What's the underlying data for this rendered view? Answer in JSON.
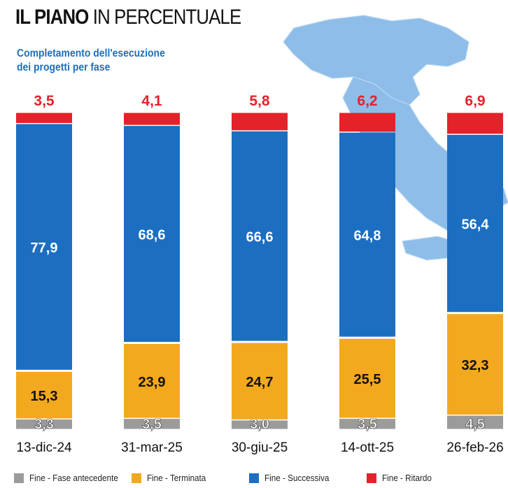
{
  "header": {
    "title_bold": "IL PIANO",
    "title_light": "IN PERCENTUALE",
    "subtitle_line1": "Completamento dell'esecuzione",
    "subtitle_line2": "dei progetti per fase"
  },
  "colors": {
    "antecedente": "#9b9b9b",
    "terminata": "#f2a91e",
    "successiva": "#1c6ec1",
    "ritardo": "#e4222a",
    "total_label": "#e4222a",
    "map": "#7fb4e3"
  },
  "chart_data": {
    "type": "bar",
    "stacked": true,
    "categories": [
      "13-dic-24",
      "31-mar-25",
      "30-giu-25",
      "14-ott-25",
      "26-feb-26"
    ],
    "series": [
      {
        "name": "Fine - Fase antecedente",
        "key": "antecedente",
        "values": [
          3.3,
          3.5,
          3.0,
          3.5,
          4.5
        ],
        "labels": [
          "3,3",
          "3,5",
          "3,0",
          "3,5",
          "4,5"
        ]
      },
      {
        "name": "Fine - Terminata",
        "key": "terminata",
        "values": [
          15.3,
          23.9,
          24.7,
          25.5,
          32.3
        ],
        "labels": [
          "15,3",
          "23,9",
          "24,7",
          "25,5",
          "32,3"
        ]
      },
      {
        "name": "Fine - Successiva",
        "key": "successiva",
        "values": [
          77.9,
          68.6,
          66.6,
          64.8,
          56.4
        ],
        "labels": [
          "77,9",
          "68,6",
          "66,6",
          "64,8",
          "56,4"
        ]
      },
      {
        "name": "Fine - Ritardo",
        "key": "ritardo",
        "values": [
          3.5,
          4.1,
          5.8,
          6.2,
          6.9
        ],
        "labels": [
          "3,5",
          "4,1",
          "5,8",
          "6,2",
          "6,9"
        ]
      }
    ],
    "ylim": [
      0,
      100
    ],
    "legend_position": "bottom",
    "grid": false
  }
}
